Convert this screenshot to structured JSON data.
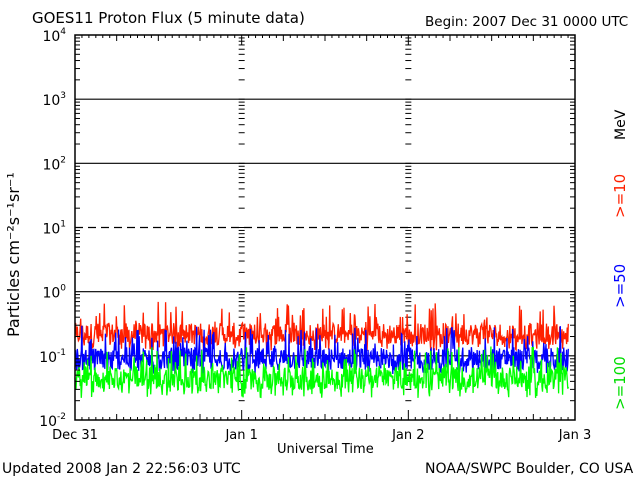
{
  "header": {
    "title": "GOES11 Proton Flux (5 minute data)",
    "begin": "Begin: 2007 Dec 31 0000 UTC"
  },
  "footer": {
    "updated": "Updated 2008 Jan  2 22:56:03 UTC",
    "credit": "NOAA/SWPC Boulder, CO USA"
  },
  "chart_data": {
    "type": "line",
    "title": "GOES11 Proton Flux (5 minute data)",
    "xlabel": "Universal Time",
    "ylabel": "Particles cm⁻²s⁻¹sr⁻¹",
    "y_scale": "log",
    "ylim": [
      0.01,
      10000
    ],
    "xlim_days": [
      0,
      3
    ],
    "x_ticks": [
      {
        "label": "Dec 31",
        "value": 0
      },
      {
        "label": "Jan 1",
        "value": 1
      },
      {
        "label": "Jan 2",
        "value": 2
      },
      {
        "label": "Jan 3",
        "value": 3
      }
    ],
    "y_ticks": [
      {
        "base": "10",
        "exp": "-2",
        "value": 0.01
      },
      {
        "base": "10",
        "exp": "-1",
        "value": 0.1
      },
      {
        "base": "10",
        "exp": "0",
        "value": 1
      },
      {
        "base": "10",
        "exp": "1",
        "value": 10
      },
      {
        "base": "10",
        "exp": "2",
        "value": 100
      },
      {
        "base": "10",
        "exp": "3",
        "value": 1000
      },
      {
        "base": "10",
        "exp": "4",
        "value": 10000
      }
    ],
    "thresholds": [
      {
        "value": 1,
        "style": "solid"
      },
      {
        "value": 10,
        "style": "dashed"
      },
      {
        "value": 100,
        "style": "solid"
      },
      {
        "value": 1000,
        "style": "solid"
      },
      {
        "value": 0.1,
        "style": "solid"
      }
    ],
    "units_label": "MeV",
    "x_data_range": [
      0,
      2.96
    ],
    "series": [
      {
        "name": ">=10",
        "color": "#ff2000",
        "base": 0.22,
        "low": 0.12,
        "high": 0.7
      },
      {
        "name": ">=50",
        "color": "#0000ff",
        "base": 0.09,
        "low": 0.05,
        "high": 0.3
      },
      {
        "name": ">=100",
        "color": "#00ff00",
        "base": 0.045,
        "low": 0.022,
        "high": 0.14
      }
    ]
  }
}
